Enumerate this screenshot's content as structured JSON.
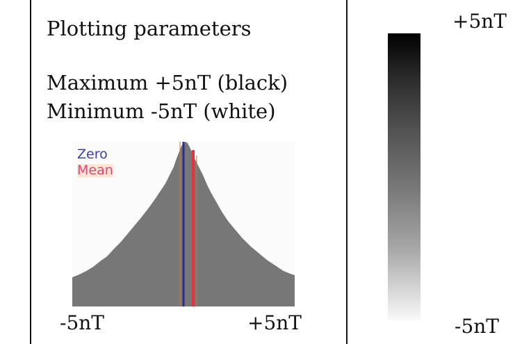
{
  "panel": {
    "title": "Plotting parameters",
    "maximum_line": "Maximum +5nT (black)",
    "minimum_line": "Minimum -5nT (white)"
  },
  "histogram": {
    "legend_zero": "Zero",
    "legend_mean": "Mean",
    "axis_min_label": "-5nT",
    "axis_max_label": "+5nT",
    "zero_line_color": "#2b2f8a",
    "mean_line_color": "#e8323c",
    "fill_color": "#777777"
  },
  "colorbar": {
    "top_label": "+5nT",
    "bottom_label": "-5nT"
  },
  "colors": {
    "frame": "#111111",
    "background": "#ffffff"
  }
}
